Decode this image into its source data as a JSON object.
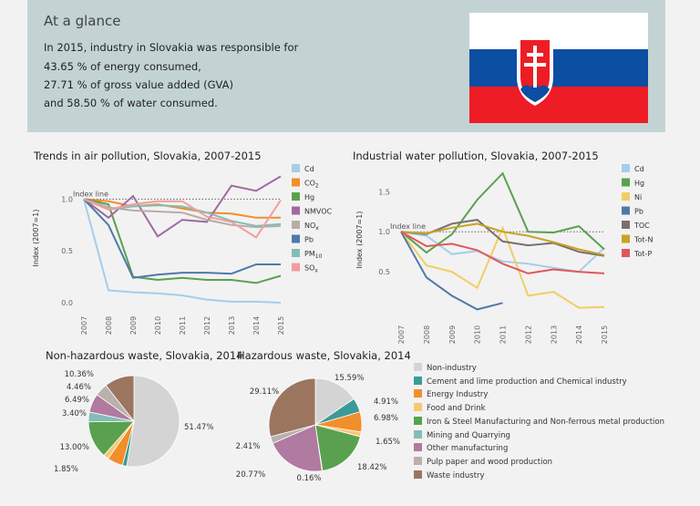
{
  "glance": {
    "title": "At a glance",
    "line1": "In 2015, industry in Slovakia was responsible for",
    "line2": "43.65 % of energy consumed,",
    "line3": "27.71 % of gross value added (GVA)",
    "line4": "and 58.50 % of water consumed."
  },
  "colors": {
    "Cd": "#a6cde8",
    "CO2": "#f28e2b",
    "Hg": "#59a14f",
    "NMVOC": "#a06aa0",
    "NOx": "#b8aca8",
    "Pb": "#4e79a7",
    "PM10": "#86bcb6",
    "SOx": "#f29d9d",
    "Ni": "#f1ce63",
    "TOC": "#79706e",
    "TotN": "#c9a227",
    "TotP": "#e15759"
  },
  "chart_data": [
    {
      "type": "line",
      "title": "Trends in air pollution, Slovakia, 2007-2015",
      "ylabel": "Index (2007=1)",
      "x": [
        "2007",
        "2008",
        "2009",
        "2010",
        "2011",
        "2012",
        "2013",
        "2014",
        "2015"
      ],
      "ylim": [
        0,
        1.25
      ],
      "yticks": [
        "0.0",
        "0.5",
        "1.0"
      ],
      "index_line_label": "Index line",
      "series": [
        {
          "name": "Cd",
          "color_key": "Cd",
          "values": [
            1.0,
            0.12,
            0.1,
            0.09,
            0.07,
            0.03,
            0.01,
            0.01,
            0.0
          ]
        },
        {
          "name": "CO",
          "sub": "2",
          "color_key": "CO2",
          "values": [
            1.0,
            0.98,
            0.93,
            0.95,
            0.91,
            0.87,
            0.86,
            0.82,
            0.82
          ]
        },
        {
          "name": "Hg",
          "color_key": "Hg",
          "values": [
            1.0,
            0.95,
            0.25,
            0.22,
            0.24,
            0.22,
            0.22,
            0.19,
            0.26
          ]
        },
        {
          "name": "NMVOC",
          "color_key": "NMVOC",
          "values": [
            1.0,
            0.82,
            1.03,
            0.64,
            0.8,
            0.78,
            1.13,
            1.08,
            1.22
          ]
        },
        {
          "name": "NO",
          "sub": "x",
          "color_key": "NOx",
          "values": [
            1.0,
            0.92,
            0.89,
            0.88,
            0.87,
            0.8,
            0.75,
            0.73,
            0.74
          ]
        },
        {
          "name": "Pb",
          "color_key": "Pb",
          "values": [
            1.0,
            0.75,
            0.24,
            0.27,
            0.29,
            0.29,
            0.28,
            0.37,
            0.37
          ]
        },
        {
          "name": "PM",
          "sub": "10",
          "color_key": "PM10",
          "values": [
            1.0,
            0.9,
            0.93,
            0.94,
            0.93,
            0.87,
            0.79,
            0.74,
            0.76
          ]
        },
        {
          "name": "SO",
          "sub": "x",
          "color_key": "SOx",
          "values": [
            1.0,
            0.9,
            0.95,
            0.98,
            0.98,
            0.83,
            0.78,
            0.63,
            0.99
          ]
        }
      ]
    },
    {
      "type": "line",
      "title": "Industrial water pollution, Slovakia, 2007-2015",
      "ylabel": "Index (2007=1)",
      "x": [
        "2007",
        "2008",
        "2009",
        "2010",
        "2011",
        "2012",
        "2013",
        "2014",
        "2015"
      ],
      "ylim": [
        0,
        1.8
      ],
      "yticks": [
        "0.5",
        "1.0",
        "1.5"
      ],
      "index_line_label": "Index line",
      "series": [
        {
          "name": "Cd",
          "color_key": "Cd",
          "values": [
            1.0,
            0.95,
            0.72,
            0.76,
            0.63,
            0.6,
            0.55,
            0.5,
            0.8
          ]
        },
        {
          "name": "Hg",
          "color_key": "Hg",
          "values": [
            1.0,
            0.74,
            0.97,
            1.4,
            1.73,
            1.0,
            0.99,
            1.07,
            0.78
          ]
        },
        {
          "name": "Ni",
          "color_key": "Ni",
          "values": [
            1.0,
            0.58,
            0.5,
            0.3,
            1.05,
            0.2,
            0.25,
            0.05,
            0.06
          ]
        },
        {
          "name": "Pb",
          "color_key": "Pb",
          "values": [
            1.0,
            0.43,
            0.2,
            0.03,
            0.11,
            null,
            null,
            null,
            null
          ]
        },
        {
          "name": "TOC",
          "color_key": "TOC",
          "values": [
            1.0,
            0.97,
            1.1,
            1.15,
            0.88,
            0.83,
            0.86,
            0.75,
            0.7
          ]
        },
        {
          "name": "Tot-N",
          "color_key": "TotN",
          "values": [
            1.0,
            0.98,
            1.05,
            1.1,
            1.0,
            0.95,
            0.87,
            0.78,
            0.71
          ]
        },
        {
          "name": "Tot-P",
          "color_key": "TotP",
          "values": [
            1.0,
            0.82,
            0.85,
            0.77,
            0.6,
            0.48,
            0.53,
            0.5,
            0.48
          ]
        }
      ]
    },
    {
      "type": "pie",
      "title": "Non-hazardous waste, Slovakia, 2014",
      "labels": [
        "Non-industry",
        "Cement and lime production and Chemical industry",
        "Energy Industry",
        "Food and Drink",
        "Iron & Steel Manufacturing and Non-ferrous metal production",
        "Mining and Quarrying",
        "Other manufacturing",
        "Pulp paper and wood production",
        "Waste industry"
      ],
      "values": [
        51.47,
        1.5,
        5.4,
        1.85,
        13.0,
        3.4,
        6.49,
        4.46,
        10.36
      ],
      "printed_labels": [
        "51.47%",
        null,
        null,
        "1.85%",
        "13.00%",
        "3.40%",
        "6.49%",
        "4.46%",
        "10.36%"
      ]
    },
    {
      "type": "pie",
      "title": "Hazardous waste, Slovakia, 2014",
      "labels": [
        "Non-industry",
        "Cement and lime production and Chemical industry",
        "Energy Industry",
        "Food and Drink",
        "Iron & Steel Manufacturing and Non-ferrous metal production",
        "Mining and Quarrying",
        "Other manufacturing",
        "Pulp paper and wood production",
        "Waste industry"
      ],
      "values": [
        15.59,
        4.91,
        6.98,
        1.65,
        18.42,
        0.16,
        20.77,
        2.41,
        29.11
      ],
      "printed_labels": [
        "15.59%",
        "4.91%",
        "6.98%",
        "1.65%",
        "18.42%",
        "0.16%",
        "20.77%",
        "2.41%",
        "29.11%"
      ]
    }
  ],
  "waste_legend": [
    {
      "label": "Non-industry",
      "color": "#d4d4d4"
    },
    {
      "label": "Cement and lime production and Chemical industry",
      "color": "#3d9b96"
    },
    {
      "label": "Energy Industry",
      "color": "#f28e2b"
    },
    {
      "label": "Food and Drink",
      "color": "#f7c873"
    },
    {
      "label": "Iron & Steel Manufacturing and Non-ferrous metal production",
      "color": "#59a14f"
    },
    {
      "label": "Mining and Quarrying",
      "color": "#86bcb6"
    },
    {
      "label": "Other manufacturing",
      "color": "#b07aa1"
    },
    {
      "label": "Pulp paper and wood production",
      "color": "#bab0ac"
    },
    {
      "label": "Waste industry",
      "color": "#9c755f"
    }
  ]
}
